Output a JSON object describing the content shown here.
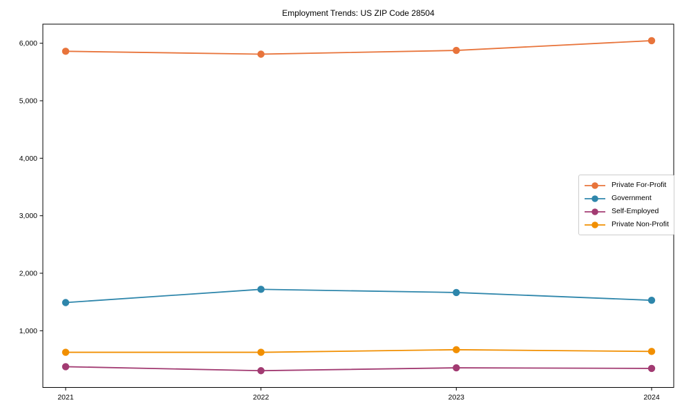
{
  "chart_data": {
    "type": "line",
    "title": "Employment Trends: US ZIP Code 28504",
    "categories": [
      "2021",
      "2022",
      "2023",
      "2024"
    ],
    "series": [
      {
        "name": "Private For-Profit",
        "color": "#E8743B",
        "values": [
          5860,
          5810,
          5875,
          6045
        ]
      },
      {
        "name": "Government",
        "color": "#2E86AB",
        "values": [
          1490,
          1720,
          1665,
          1530
        ]
      },
      {
        "name": "Self-Employed",
        "color": "#A23B72",
        "values": [
          375,
          305,
          355,
          345
        ]
      },
      {
        "name": "Private Non-Profit",
        "color": "#F18F01",
        "values": [
          625,
          625,
          670,
          640
        ]
      }
    ],
    "yticks": [
      1000,
      2000,
      3000,
      4000,
      5000,
      6000
    ],
    "ytick_labels": [
      "1,000",
      "2,000",
      "3,000",
      "4,000",
      "5,000",
      "6,000"
    ],
    "ylim": [
      14,
      6332
    ],
    "xlabel": "",
    "ylabel": "",
    "grid": false,
    "legend_position": "center-right-inside",
    "marker": "circle"
  }
}
